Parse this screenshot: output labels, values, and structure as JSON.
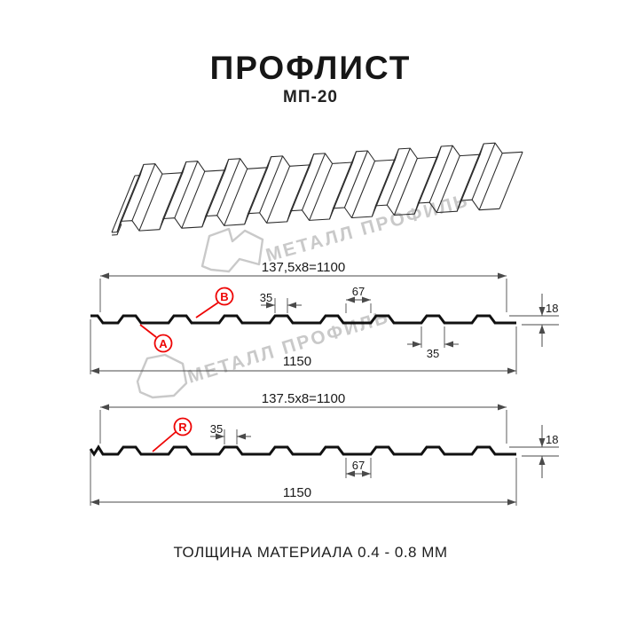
{
  "header": {
    "title": "ПРОФЛИСТ",
    "subtitle": "МП-20"
  },
  "watermark": {
    "text": "МЕТАЛЛ ПРОФИЛЬ",
    "color": "#c9c9c9"
  },
  "footer": {
    "note": "ТОЛЩИНА МАТЕРИАЛА 0.4 - 0.8 ММ"
  },
  "colors": {
    "accent_red": "#ee0505",
    "drawing_line": "#111111",
    "dimension_line": "#4a4a4a",
    "watermark_gray": "#c9c9c9"
  },
  "profile_top": {
    "coverage_width": "137,5x8=1100",
    "overall_width": "1150",
    "rib_top_width": "35",
    "rib_bottom_width": "35",
    "flat_width": "67",
    "height": "18",
    "label_a": "A",
    "label_b": "B"
  },
  "profile_bottom": {
    "coverage_width": "137.5x8=1100",
    "overall_width": "1150",
    "rib_top_width": "35",
    "flat_width": "67",
    "height": "18",
    "label_r": "R"
  }
}
